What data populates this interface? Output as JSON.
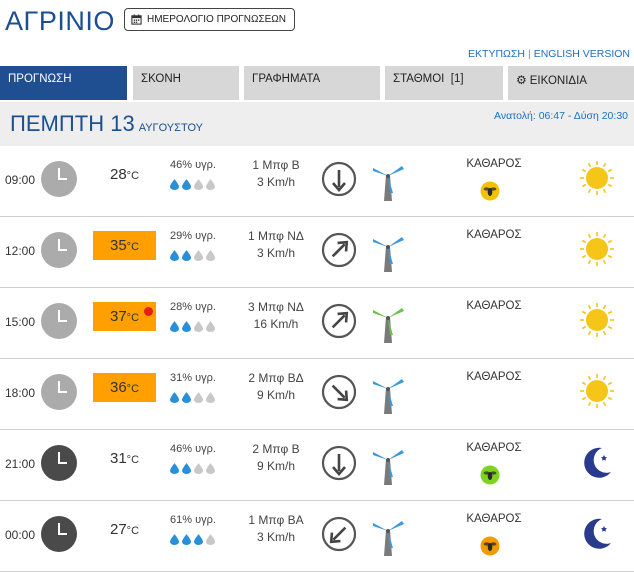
{
  "city": "ΑΓΡΙΝΙΟ",
  "calendar_button": "ΗΜΕΡΟΛΟΓΙΟ ΠΡΟΓΝΩΣΕΩΝ",
  "links": {
    "print": "ΕΚΤΥΠΩΣΗ",
    "separator": "|",
    "english": "ENGLISH VERSION"
  },
  "tabs": [
    {
      "label": "ΠΡΟΓΝΩΣΗ",
      "active": true
    },
    {
      "label": "ΣΚΟΝΗ"
    },
    {
      "label": "ΓΡΑΦΗΜΑΤΑ"
    },
    {
      "label": "ΣΤΑΘΜΟΙ  [1]"
    },
    {
      "label": "ΕΙΚΟΝΙΔΙΑ"
    }
  ],
  "day_header": {
    "day": "ΠΕΜΠΤΗ 13",
    "month": "ΑΥΓΟΥΣΤΟΥ",
    "sun": "Ανατολή: 06:47  - Δύση 20:30"
  },
  "degree_unit": "°C",
  "rows": [
    {
      "time": "09:00",
      "temp": "28",
      "hot": false,
      "alert": false,
      "humidity": "46% υγρ.",
      "drops_filled": 2,
      "wind_force": "1 Μπφ Β",
      "wind_speed": "3 Km/h",
      "wind_dir": "Β",
      "condition": "ΚΑΘΑΡΟΣ",
      "pollen": "yellow",
      "icon": "sun-icon",
      "night": false
    },
    {
      "time": "12:00",
      "temp": "35",
      "hot": true,
      "alert": false,
      "humidity": "29% υγρ.",
      "drops_filled": 2,
      "wind_force": "1 Μπφ ΝΔ",
      "wind_speed": "3 Km/h",
      "wind_dir": "ΝΔ",
      "condition": "ΚΑΘΑΡΟΣ",
      "pollen": null,
      "icon": "sun-icon",
      "night": false
    },
    {
      "time": "15:00",
      "temp": "37",
      "hot": true,
      "alert": true,
      "humidity": "28% υγρ.",
      "drops_filled": 2,
      "wind_force": "3 Μπφ ΝΔ",
      "wind_speed": "16 Km/h",
      "wind_dir": "ΝΔ",
      "condition": "ΚΑΘΑΡΟΣ",
      "pollen": null,
      "icon": "sun-icon",
      "night": false
    },
    {
      "time": "18:00",
      "temp": "36",
      "hot": true,
      "alert": false,
      "humidity": "31% υγρ.",
      "drops_filled": 2,
      "wind_force": "2 Μπφ ΒΔ",
      "wind_speed": "9 Km/h",
      "wind_dir": "ΒΔ",
      "condition": "ΚΑΘΑΡΟΣ",
      "pollen": null,
      "icon": "sun-icon",
      "night": false
    },
    {
      "time": "21:00",
      "temp": "31",
      "hot": false,
      "alert": false,
      "humidity": "46% υγρ.",
      "drops_filled": 2,
      "wind_force": "2 Μπφ Β",
      "wind_speed": "9 Km/h",
      "wind_dir": "Β",
      "condition": "ΚΑΘΑΡΟΣ",
      "pollen": "green",
      "icon": "moon-icon",
      "night": true
    },
    {
      "time": "00:00",
      "temp": "27",
      "hot": false,
      "alert": false,
      "humidity": "61% υγρ.",
      "drops_filled": 3,
      "wind_force": "1 Μπφ ΒΑ",
      "wind_speed": "3 Km/h",
      "wind_dir": "ΒΑ",
      "condition": "ΚΑΘΑΡΟΣ",
      "pollen": "orange",
      "icon": "moon-icon",
      "night": true
    }
  ],
  "colors": {
    "primary": "#1f4e91",
    "hot": "#ffa000",
    "drop_filled": "#2a8fd6",
    "drop_empty": "#c8c8c8",
    "mill_normal": "#3b9ad9",
    "mill_strong": "#6cc24a"
  }
}
